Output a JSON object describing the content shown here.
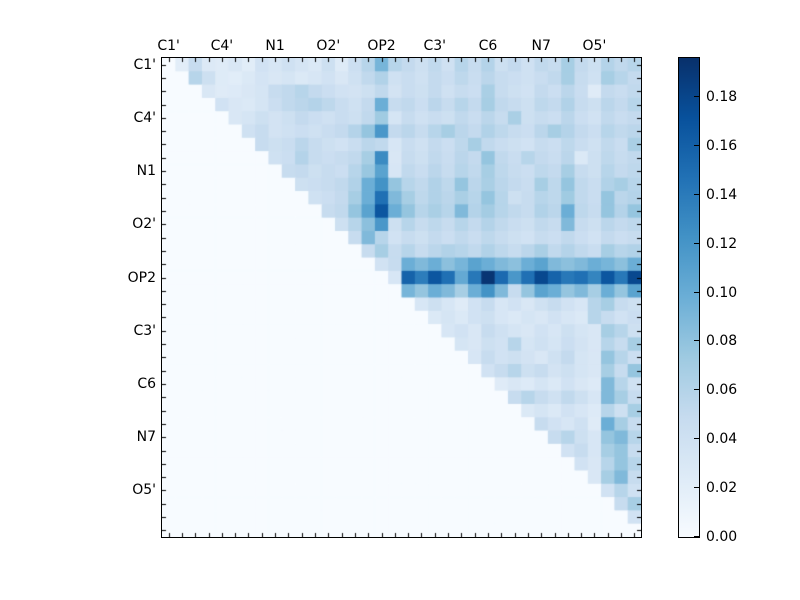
{
  "figure": {
    "background": "#ffffff",
    "frame_color": "#000000",
    "tick_color": "#000000",
    "text_color": "#000000"
  },
  "chart_data": {
    "type": "heatmap",
    "title": "",
    "xlabel": "",
    "ylabel": "",
    "n": 36,
    "triangle": "upper",
    "x_tick_labels": [
      "C1'",
      "C4'",
      "N1",
      "O2'",
      "OP2",
      "C3'",
      "C6",
      "N7",
      "O5'"
    ],
    "y_tick_labels": [
      "C1'",
      "C4'",
      "N1",
      "O2'",
      "OP2",
      "C3'",
      "C6",
      "N7",
      "O5'"
    ],
    "tick_label_positions": [
      0,
      4,
      8,
      12,
      16,
      20,
      24,
      28,
      32
    ],
    "vmin": 0.0,
    "vmax": 0.196,
    "colormap": {
      "name": "Blues",
      "stops": [
        [
          0.0,
          "#f7fbff"
        ],
        [
          0.125,
          "#deebf7"
        ],
        [
          0.25,
          "#c6dbef"
        ],
        [
          0.375,
          "#9ecae1"
        ],
        [
          0.5,
          "#6baed6"
        ],
        [
          0.625,
          "#4292c6"
        ],
        [
          0.75,
          "#2171b5"
        ],
        [
          0.875,
          "#08519c"
        ],
        [
          1.0,
          "#08306b"
        ]
      ]
    },
    "colorbar": {
      "ticks": [
        0.0,
        0.02,
        0.04,
        0.06,
        0.08,
        0.1,
        0.12,
        0.14,
        0.16,
        0.18
      ],
      "tick_labels": [
        "0.00",
        "0.02",
        "0.04",
        "0.06",
        "0.08",
        "0.10",
        "0.12",
        "0.14",
        "0.16",
        "0.18"
      ]
    },
    "rows_upper_from_diagonal": [
      [
        0,
        0.021,
        0.048,
        0.027,
        0.024,
        0.03,
        0.022,
        0.038,
        0.032,
        0.04,
        0.034,
        0.028,
        0.042,
        0.025,
        0.043,
        0.058,
        0.092,
        0.058,
        0.05,
        0.042,
        0.052,
        0.04,
        0.058,
        0.048,
        0.06,
        0.042,
        0.05,
        0.04,
        0.052,
        0.048,
        0.068,
        0.05,
        0.042,
        0.06,
        0.052,
        0.058
      ],
      [
        0,
        0.058,
        0.042,
        0.025,
        0.022,
        0.028,
        0.035,
        0.03,
        0.034,
        0.028,
        0.032,
        0.038,
        0.03,
        0.04,
        0.052,
        0.062,
        0.04,
        0.046,
        0.04,
        0.05,
        0.044,
        0.054,
        0.046,
        0.056,
        0.048,
        0.044,
        0.04,
        0.046,
        0.052,
        0.068,
        0.048,
        0.04,
        0.068,
        0.058,
        0.05
      ],
      [
        0,
        0.03,
        0.024,
        0.026,
        0.03,
        0.034,
        0.048,
        0.052,
        0.058,
        0.05,
        0.044,
        0.038,
        0.036,
        0.042,
        0.052,
        0.036,
        0.046,
        0.042,
        0.05,
        0.04,
        0.048,
        0.044,
        0.066,
        0.048,
        0.042,
        0.038,
        0.05,
        0.044,
        0.056,
        0.046,
        0.024,
        0.05,
        0.046,
        0.052
      ],
      [
        0,
        0.038,
        0.03,
        0.028,
        0.034,
        0.044,
        0.052,
        0.056,
        0.06,
        0.054,
        0.046,
        0.04,
        0.05,
        0.098,
        0.048,
        0.052,
        0.044,
        0.056,
        0.048,
        0.058,
        0.05,
        0.068,
        0.052,
        0.048,
        0.042,
        0.054,
        0.05,
        0.062,
        0.048,
        0.042,
        0.056,
        0.05,
        0.058
      ],
      [
        0,
        0.03,
        0.034,
        0.042,
        0.036,
        0.042,
        0.05,
        0.044,
        0.04,
        0.046,
        0.042,
        0.052,
        0.072,
        0.034,
        0.048,
        0.04,
        0.046,
        0.042,
        0.052,
        0.046,
        0.056,
        0.048,
        0.066,
        0.042,
        0.048,
        0.044,
        0.056,
        0.044,
        0.038,
        0.052,
        0.046,
        0.05
      ],
      [
        0,
        0.04,
        0.048,
        0.036,
        0.04,
        0.044,
        0.04,
        0.046,
        0.05,
        0.06,
        0.078,
        0.118,
        0.05,
        0.056,
        0.048,
        0.058,
        0.068,
        0.056,
        0.05,
        0.062,
        0.054,
        0.048,
        0.044,
        0.056,
        0.068,
        0.06,
        0.05,
        0.044,
        0.058,
        0.052,
        0.056
      ],
      [
        0,
        0.048,
        0.042,
        0.046,
        0.056,
        0.048,
        0.042,
        0.038,
        0.046,
        0.056,
        0.052,
        0.032,
        0.046,
        0.04,
        0.05,
        0.044,
        0.054,
        0.068,
        0.052,
        0.046,
        0.042,
        0.038,
        0.048,
        0.044,
        0.054,
        0.046,
        0.04,
        0.052,
        0.046,
        0.066
      ],
      [
        0,
        0.04,
        0.044,
        0.06,
        0.048,
        0.044,
        0.048,
        0.052,
        0.068,
        0.128,
        0.03,
        0.048,
        0.042,
        0.052,
        0.046,
        0.056,
        0.05,
        0.078,
        0.052,
        0.046,
        0.058,
        0.05,
        0.046,
        0.056,
        0.028,
        0.042,
        0.054,
        0.048,
        0.052
      ],
      [
        0,
        0.048,
        0.05,
        0.042,
        0.048,
        0.044,
        0.058,
        0.076,
        0.108,
        0.032,
        0.052,
        0.046,
        0.056,
        0.048,
        0.058,
        0.052,
        0.068,
        0.054,
        0.048,
        0.044,
        0.054,
        0.05,
        0.068,
        0.048,
        0.042,
        0.058,
        0.05,
        0.054
      ],
      [
        0,
        0.042,
        0.044,
        0.048,
        0.052,
        0.062,
        0.098,
        0.122,
        0.078,
        0.058,
        0.052,
        0.062,
        0.054,
        0.078,
        0.056,
        0.066,
        0.056,
        0.05,
        0.046,
        0.068,
        0.054,
        0.078,
        0.052,
        0.046,
        0.062,
        0.068,
        0.058
      ],
      [
        0,
        0.04,
        0.044,
        0.05,
        0.068,
        0.098,
        0.148,
        0.088,
        0.068,
        0.054,
        0.062,
        0.056,
        0.066,
        0.058,
        0.078,
        0.058,
        0.042,
        0.048,
        0.058,
        0.054,
        0.072,
        0.052,
        0.046,
        0.078,
        0.056,
        0.06
      ],
      [
        0,
        0.048,
        0.052,
        0.078,
        0.108,
        0.168,
        0.098,
        0.078,
        0.058,
        0.066,
        0.058,
        0.088,
        0.06,
        0.07,
        0.058,
        0.052,
        0.048,
        0.062,
        0.056,
        0.098,
        0.054,
        0.048,
        0.078,
        0.06,
        0.078
      ],
      [
        0,
        0.042,
        0.058,
        0.082,
        0.118,
        0.042,
        0.058,
        0.048,
        0.054,
        0.048,
        0.058,
        0.05,
        0.06,
        0.052,
        0.046,
        0.042,
        0.052,
        0.048,
        0.088,
        0.048,
        0.042,
        0.056,
        0.05,
        0.054
      ],
      [
        0,
        0.048,
        0.088,
        0.058,
        0.038,
        0.048,
        0.042,
        0.05,
        0.044,
        0.052,
        0.046,
        0.054,
        0.048,
        0.042,
        0.038,
        0.048,
        0.044,
        0.052,
        0.044,
        0.038,
        0.05,
        0.044,
        0.048
      ],
      [
        0,
        0.048,
        0.068,
        0.048,
        0.058,
        0.048,
        0.056,
        0.062,
        0.058,
        0.052,
        0.062,
        0.054,
        0.048,
        0.056,
        0.066,
        0.052,
        0.06,
        0.052,
        0.046,
        0.068,
        0.058,
        0.062
      ],
      [
        0,
        0.038,
        0.048,
        0.098,
        0.088,
        0.098,
        0.082,
        0.092,
        0.108,
        0.098,
        0.088,
        0.082,
        0.098,
        0.108,
        0.088,
        0.082,
        0.088,
        0.098,
        0.092,
        0.082,
        0.098
      ],
      [
        0,
        0.032,
        0.158,
        0.138,
        0.168,
        0.148,
        0.102,
        0.142,
        0.192,
        0.152,
        0.118,
        0.148,
        0.178,
        0.158,
        0.142,
        0.148,
        0.132,
        0.168,
        0.142,
        0.178
      ],
      [
        0,
        0.092,
        0.078,
        0.098,
        0.088,
        0.068,
        0.098,
        0.122,
        0.088,
        0.048,
        0.078,
        0.108,
        0.098,
        0.078,
        0.088,
        0.068,
        0.098,
        0.078,
        0.108
      ],
      [
        0,
        0.032,
        0.042,
        0.032,
        0.024,
        0.038,
        0.048,
        0.032,
        0.038,
        0.03,
        0.04,
        0.048,
        0.038,
        0.032,
        0.058,
        0.068,
        0.048,
        0.042
      ],
      [
        0,
        0.028,
        0.034,
        0.028,
        0.038,
        0.042,
        0.032,
        0.028,
        0.034,
        0.03,
        0.038,
        0.032,
        0.028,
        0.058,
        0.048,
        0.038,
        0.044
      ],
      [
        0,
        0.032,
        0.038,
        0.03,
        0.048,
        0.04,
        0.034,
        0.03,
        0.038,
        0.032,
        0.042,
        0.034,
        0.03,
        0.068,
        0.058,
        0.042
      ],
      [
        0,
        0.034,
        0.03,
        0.042,
        0.038,
        0.058,
        0.034,
        0.04,
        0.034,
        0.044,
        0.036,
        0.03,
        0.058,
        0.048,
        0.068
      ],
      [
        0,
        0.032,
        0.048,
        0.038,
        0.042,
        0.036,
        0.03,
        0.04,
        0.05,
        0.034,
        0.03,
        0.078,
        0.058,
        0.044
      ],
      [
        0,
        0.038,
        0.048,
        0.058,
        0.042,
        0.048,
        0.036,
        0.042,
        0.034,
        0.03,
        0.068,
        0.048,
        0.078
      ],
      [
        0,
        0.024,
        0.03,
        0.026,
        0.034,
        0.028,
        0.038,
        0.03,
        0.026,
        0.088,
        0.058,
        0.04
      ],
      [
        0,
        0.048,
        0.058,
        0.048,
        0.04,
        0.052,
        0.042,
        0.032,
        0.088,
        0.068,
        0.048
      ],
      [
        0,
        0.028,
        0.034,
        0.028,
        0.038,
        0.032,
        0.026,
        0.058,
        0.042,
        0.068
      ],
      [
        0,
        0.048,
        0.038,
        0.032,
        0.04,
        0.024,
        0.098,
        0.068,
        0.048
      ],
      [
        0,
        0.048,
        0.058,
        0.042,
        0.032,
        0.078,
        0.088,
        0.058
      ],
      [
        0,
        0.038,
        0.048,
        0.032,
        0.068,
        0.078,
        0.048
      ],
      [
        0,
        0.038,
        0.03,
        0.058,
        0.078,
        0.058
      ],
      [
        0,
        0.03,
        0.068,
        0.088,
        0.048
      ],
      [
        0,
        0.038,
        0.058,
        0.04
      ],
      [
        0,
        0.048,
        0.068
      ],
      [
        0,
        0.038
      ],
      [
        0
      ]
    ]
  }
}
